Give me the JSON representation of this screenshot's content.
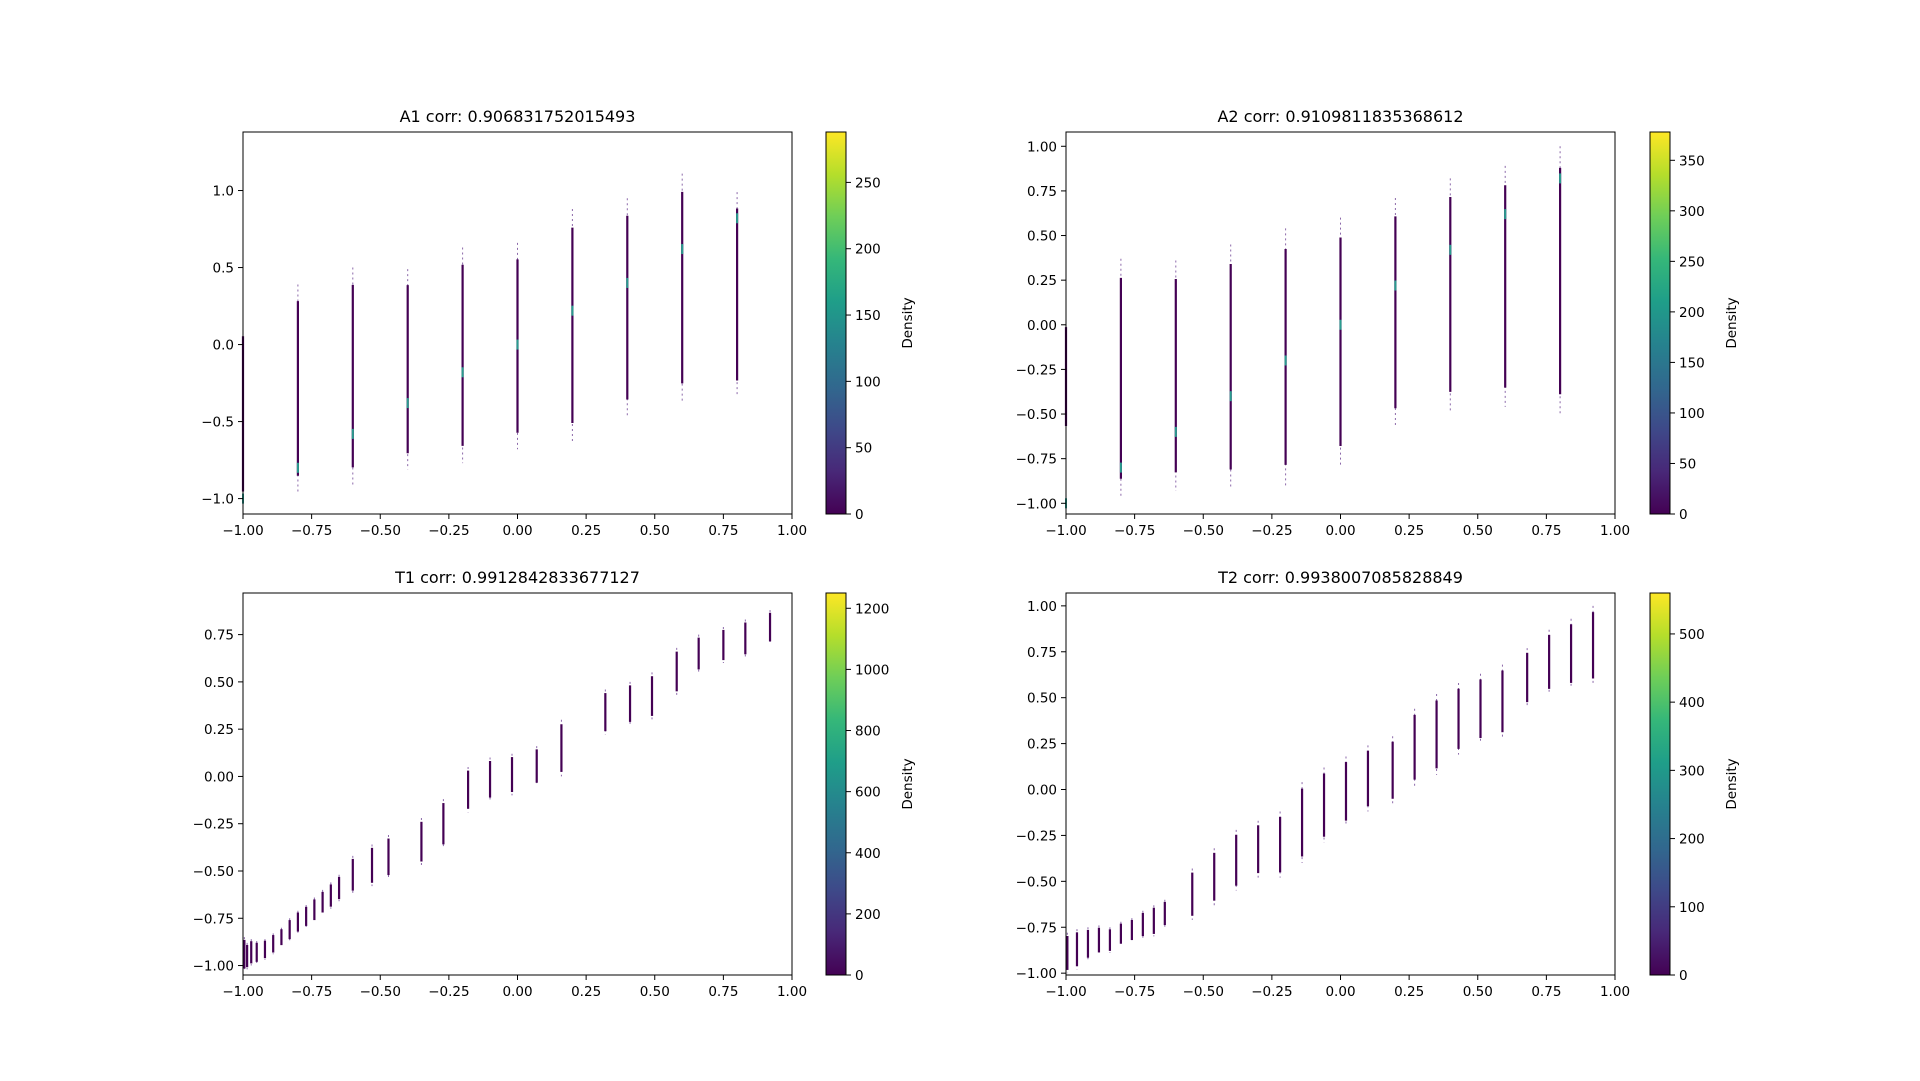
{
  "colorbar": {
    "label": "Density",
    "colors": [
      "#440154",
      "#482878",
      "#3e4989",
      "#31688e",
      "#26828e",
      "#1f9e89",
      "#35b779",
      "#6ece58",
      "#b5de2b",
      "#fde725"
    ]
  },
  "chart_data": [
    {
      "type": "heatmap",
      "title": "A1 corr: 0.906831752015493",
      "xlim": [
        -1.0,
        1.0
      ],
      "ylim": [
        -1.1,
        1.38
      ],
      "xticks": [
        -1.0,
        -0.75,
        -0.5,
        -0.25,
        0.0,
        0.25,
        0.5,
        0.75,
        1.0
      ],
      "xtick_labels": [
        "−1.00",
        "−0.75",
        "−0.50",
        "−0.25",
        "0.00",
        "0.25",
        "0.50",
        "0.75",
        "1.00"
      ],
      "yticks": [
        -1.0,
        -0.5,
        0.0,
        0.5,
        1.0
      ],
      "ytick_labels": [
        "−1.0",
        "−0.5",
        "0.0",
        "0.5",
        "1.0"
      ],
      "colorbar": {
        "max": 288,
        "ticks": [
          0,
          50,
          100,
          150,
          200,
          250
        ],
        "tick_labels": [
          "0",
          "50",
          "100",
          "150",
          "200",
          "250"
        ],
        "label": "Density"
      },
      "columns": [
        {
          "x": -1.0,
          "y_min": -1.05,
          "y_max": 0.15,
          "mode": -1.0
        },
        {
          "x": -0.8,
          "y_min": -0.96,
          "y_max": 0.39,
          "mode": -0.8
        },
        {
          "x": -0.6,
          "y_min": -0.91,
          "y_max": 0.5,
          "mode": -0.58
        },
        {
          "x": -0.4,
          "y_min": -0.81,
          "y_max": 0.49,
          "mode": -0.38
        },
        {
          "x": -0.2,
          "y_min": -0.77,
          "y_max": 0.63,
          "mode": -0.18
        },
        {
          "x": 0.0,
          "y_min": -0.68,
          "y_max": 0.66,
          "mode": 0.0
        },
        {
          "x": 0.2,
          "y_min": -0.63,
          "y_max": 0.88,
          "mode": 0.22
        },
        {
          "x": 0.4,
          "y_min": -0.47,
          "y_max": 0.95,
          "mode": 0.4
        },
        {
          "x": 0.6,
          "y_min": -0.37,
          "y_max": 1.11,
          "mode": 0.62
        },
        {
          "x": 0.8,
          "y_min": -0.34,
          "y_max": 0.99,
          "mode": 0.82
        }
      ]
    },
    {
      "type": "heatmap",
      "title": "A2 corr: 0.9109811835368612",
      "xlim": [
        -1.0,
        1.0
      ],
      "ylim": [
        -1.06,
        1.08
      ],
      "xticks": [
        -1.0,
        -0.75,
        -0.5,
        -0.25,
        0.0,
        0.25,
        0.5,
        0.75,
        1.0
      ],
      "xtick_labels": [
        "−1.00",
        "−0.75",
        "−0.50",
        "−0.25",
        "0.00",
        "0.25",
        "0.50",
        "0.75",
        "1.00"
      ],
      "yticks": [
        -1.0,
        -0.75,
        -0.5,
        -0.25,
        0.0,
        0.25,
        0.5,
        0.75,
        1.0
      ],
      "ytick_labels": [
        "−1.00",
        "−0.75",
        "−0.50",
        "−0.25",
        "0.00",
        "0.25",
        "0.50",
        "0.75",
        "1.00"
      ],
      "colorbar": {
        "max": 378,
        "ticks": [
          0,
          50,
          100,
          150,
          200,
          250,
          300,
          350
        ],
        "tick_labels": [
          "0",
          "50",
          "100",
          "150",
          "200",
          "250",
          "300",
          "350"
        ],
        "label": "Density"
      },
      "columns": [
        {
          "x": -1.0,
          "y_min": -0.62,
          "y_max": 0.04,
          "mode": -1.0
        },
        {
          "x": -0.8,
          "y_min": -0.97,
          "y_max": 0.37,
          "mode": -0.8
        },
        {
          "x": -0.6,
          "y_min": -0.93,
          "y_max": 0.36,
          "mode": -0.6
        },
        {
          "x": -0.4,
          "y_min": -0.92,
          "y_max": 0.45,
          "mode": -0.4
        },
        {
          "x": -0.2,
          "y_min": -0.9,
          "y_max": 0.54,
          "mode": -0.2
        },
        {
          "x": 0.0,
          "y_min": -0.79,
          "y_max": 0.6,
          "mode": 0.0
        },
        {
          "x": 0.2,
          "y_min": -0.57,
          "y_max": 0.71,
          "mode": 0.22
        },
        {
          "x": 0.4,
          "y_min": -0.48,
          "y_max": 0.82,
          "mode": 0.42
        },
        {
          "x": 0.6,
          "y_min": -0.46,
          "y_max": 0.89,
          "mode": 0.62
        },
        {
          "x": 0.8,
          "y_min": -0.51,
          "y_max": 1.0,
          "mode": 0.82
        }
      ]
    },
    {
      "type": "heatmap",
      "title": "T1 corr: 0.9912842833677127",
      "xlim": [
        -1.0,
        1.0
      ],
      "ylim": [
        -1.05,
        0.97
      ],
      "xticks": [
        -1.0,
        -0.75,
        -0.5,
        -0.25,
        0.0,
        0.25,
        0.5,
        0.75,
        1.0
      ],
      "xtick_labels": [
        "−1.00",
        "−0.75",
        "−0.50",
        "−0.25",
        "0.00",
        "0.25",
        "0.50",
        "0.75",
        "1.00"
      ],
      "yticks": [
        -1.0,
        -0.75,
        -0.5,
        -0.25,
        0.0,
        0.25,
        0.5,
        0.75
      ],
      "ytick_labels": [
        "−1.00",
        "−0.75",
        "−0.50",
        "−0.25",
        "0.00",
        "0.25",
        "0.50",
        "0.75"
      ],
      "colorbar": {
        "max": 1250,
        "ticks": [
          0,
          200,
          400,
          600,
          800,
          1000,
          1200
        ],
        "tick_labels": [
          "0",
          "200",
          "400",
          "600",
          "800",
          "1000",
          "1200"
        ],
        "label": "Density"
      },
      "columns": [
        {
          "x": -0.995,
          "y_min": -1.03,
          "y_max": -0.85
        },
        {
          "x": -0.985,
          "y_min": -1.02,
          "y_max": -0.88
        },
        {
          "x": -0.97,
          "y_min": -1.0,
          "y_max": -0.86
        },
        {
          "x": -0.95,
          "y_min": -0.99,
          "y_max": -0.87
        },
        {
          "x": -0.92,
          "y_min": -0.97,
          "y_max": -0.86
        },
        {
          "x": -0.89,
          "y_min": -0.94,
          "y_max": -0.83
        },
        {
          "x": -0.86,
          "y_min": -0.9,
          "y_max": -0.8
        },
        {
          "x": -0.83,
          "y_min": -0.87,
          "y_max": -0.75
        },
        {
          "x": -0.8,
          "y_min": -0.83,
          "y_max": -0.71
        },
        {
          "x": -0.77,
          "y_min": -0.8,
          "y_max": -0.68
        },
        {
          "x": -0.74,
          "y_min": -0.77,
          "y_max": -0.64
        },
        {
          "x": -0.71,
          "y_min": -0.73,
          "y_max": -0.6
        },
        {
          "x": -0.68,
          "y_min": -0.7,
          "y_max": -0.56
        },
        {
          "x": -0.65,
          "y_min": -0.66,
          "y_max": -0.52
        },
        {
          "x": -0.6,
          "y_min": -0.62,
          "y_max": -0.42
        },
        {
          "x": -0.53,
          "y_min": -0.58,
          "y_max": -0.36
        },
        {
          "x": -0.47,
          "y_min": -0.54,
          "y_max": -0.31
        },
        {
          "x": -0.35,
          "y_min": -0.47,
          "y_max": -0.22
        },
        {
          "x": -0.27,
          "y_min": -0.38,
          "y_max": -0.12
        },
        {
          "x": -0.18,
          "y_min": -0.19,
          "y_max": 0.05
        },
        {
          "x": -0.1,
          "y_min": -0.13,
          "y_max": 0.1
        },
        {
          "x": -0.02,
          "y_min": -0.1,
          "y_max": 0.12
        },
        {
          "x": 0.07,
          "y_min": -0.05,
          "y_max": 0.16
        },
        {
          "x": 0.16,
          "y_min": 0.0,
          "y_max": 0.3
        },
        {
          "x": 0.32,
          "y_min": 0.22,
          "y_max": 0.46
        },
        {
          "x": 0.41,
          "y_min": 0.27,
          "y_max": 0.5
        },
        {
          "x": 0.49,
          "y_min": 0.3,
          "y_max": 0.55
        },
        {
          "x": 0.58,
          "y_min": 0.43,
          "y_max": 0.68
        },
        {
          "x": 0.66,
          "y_min": 0.55,
          "y_max": 0.75
        },
        {
          "x": 0.75,
          "y_min": 0.6,
          "y_max": 0.79
        },
        {
          "x": 0.83,
          "y_min": 0.63,
          "y_max": 0.83
        },
        {
          "x": 0.92,
          "y_min": 0.7,
          "y_max": 0.88
        }
      ]
    },
    {
      "type": "heatmap",
      "title": "T2 corr: 0.9938007085828849",
      "xlim": [
        -1.0,
        1.0
      ],
      "ylim": [
        -1.01,
        1.07
      ],
      "xticks": [
        -1.0,
        -0.75,
        -0.5,
        -0.25,
        0.0,
        0.25,
        0.5,
        0.75,
        1.0
      ],
      "xtick_labels": [
        "−1.00",
        "−0.75",
        "−0.50",
        "−0.25",
        "0.00",
        "0.25",
        "0.50",
        "0.75",
        "1.00"
      ],
      "yticks": [
        -1.0,
        -0.75,
        -0.5,
        -0.25,
        0.0,
        0.25,
        0.5,
        0.75,
        1.0
      ],
      "ytick_labels": [
        "−1.00",
        "−0.75",
        "−0.50",
        "−0.25",
        "0.00",
        "0.25",
        "0.50",
        "0.75",
        "1.00"
      ],
      "colorbar": {
        "max": 560,
        "ticks": [
          0,
          100,
          200,
          300,
          400,
          500
        ],
        "tick_labels": [
          "0",
          "100",
          "200",
          "300",
          "400",
          "500"
        ],
        "label": "Density"
      },
      "columns": [
        {
          "x": -0.995,
          "y_min": -1.0,
          "y_max": -0.78
        },
        {
          "x": -0.96,
          "y_min": -0.98,
          "y_max": -0.76
        },
        {
          "x": -0.92,
          "y_min": -0.93,
          "y_max": -0.75
        },
        {
          "x": -0.88,
          "y_min": -0.9,
          "y_max": -0.74
        },
        {
          "x": -0.84,
          "y_min": -0.89,
          "y_max": -0.75
        },
        {
          "x": -0.8,
          "y_min": -0.85,
          "y_max": -0.72
        },
        {
          "x": -0.76,
          "y_min": -0.83,
          "y_max": -0.7
        },
        {
          "x": -0.72,
          "y_min": -0.81,
          "y_max": -0.66
        },
        {
          "x": -0.68,
          "y_min": -0.8,
          "y_max": -0.63
        },
        {
          "x": -0.64,
          "y_min": -0.75,
          "y_max": -0.6
        },
        {
          "x": -0.54,
          "y_min": -0.71,
          "y_max": -0.43
        },
        {
          "x": -0.46,
          "y_min": -0.63,
          "y_max": -0.32
        },
        {
          "x": -0.38,
          "y_min": -0.55,
          "y_max": -0.22
        },
        {
          "x": -0.3,
          "y_min": -0.48,
          "y_max": -0.17
        },
        {
          "x": -0.22,
          "y_min": -0.48,
          "y_max": -0.12
        },
        {
          "x": -0.14,
          "y_min": -0.4,
          "y_max": 0.04
        },
        {
          "x": -0.06,
          "y_min": -0.29,
          "y_max": 0.12
        },
        {
          "x": 0.02,
          "y_min": -0.2,
          "y_max": 0.18
        },
        {
          "x": 0.1,
          "y_min": -0.12,
          "y_max": 0.24
        },
        {
          "x": 0.19,
          "y_min": -0.08,
          "y_max": 0.29
        },
        {
          "x": 0.27,
          "y_min": 0.02,
          "y_max": 0.44
        },
        {
          "x": 0.35,
          "y_min": 0.08,
          "y_max": 0.52
        },
        {
          "x": 0.43,
          "y_min": 0.19,
          "y_max": 0.58
        },
        {
          "x": 0.51,
          "y_min": 0.25,
          "y_max": 0.63
        },
        {
          "x": 0.59,
          "y_min": 0.28,
          "y_max": 0.68
        },
        {
          "x": 0.68,
          "y_min": 0.45,
          "y_max": 0.77
        },
        {
          "x": 0.76,
          "y_min": 0.52,
          "y_max": 0.87
        },
        {
          "x": 0.84,
          "y_min": 0.55,
          "y_max": 0.93
        },
        {
          "x": 0.92,
          "y_min": 0.57,
          "y_max": 1.0
        }
      ]
    }
  ]
}
